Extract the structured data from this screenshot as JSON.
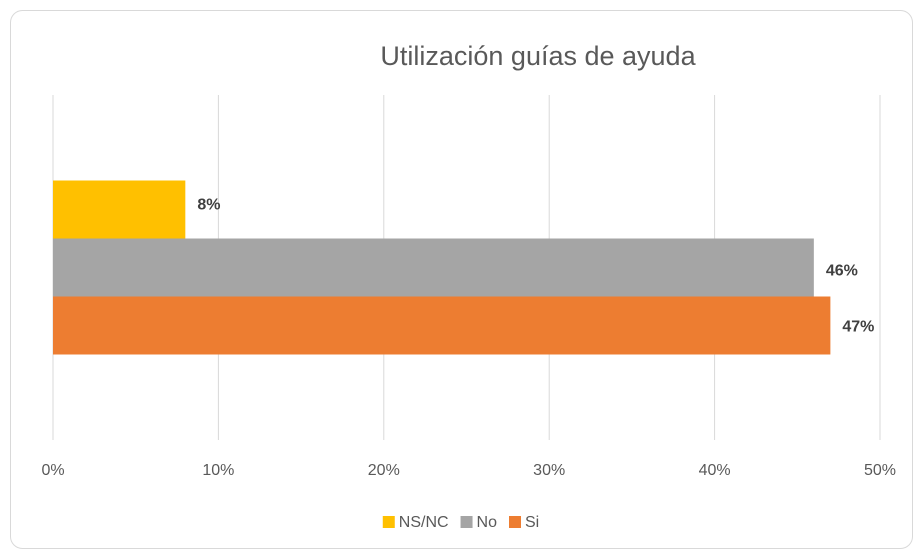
{
  "chart_data": {
    "type": "bar",
    "orientation": "horizontal",
    "title": "Utilización guías de ayuda",
    "categories": [
      null
    ],
    "series": [
      {
        "name": "NS/NC",
        "color": "#ffc000",
        "values": [
          8
        ],
        "value_labels": [
          "8%"
        ]
      },
      {
        "name": "No",
        "color": "#a5a5a5",
        "values": [
          46
        ],
        "value_labels": [
          "46%"
        ]
      },
      {
        "name": "Si",
        "color": "#ed7d31",
        "values": [
          47
        ],
        "value_labels": [
          "47%"
        ]
      }
    ],
    "xlim": [
      0,
      50
    ],
    "xticks": [
      {
        "value": 0,
        "label": "0%"
      },
      {
        "value": 10,
        "label": "10%"
      },
      {
        "value": 20,
        "label": "20%"
      },
      {
        "value": 30,
        "label": "30%"
      },
      {
        "value": 40,
        "label": "40%"
      },
      {
        "value": 50,
        "label": "50%"
      }
    ],
    "grid": true,
    "legend": "bottom"
  }
}
